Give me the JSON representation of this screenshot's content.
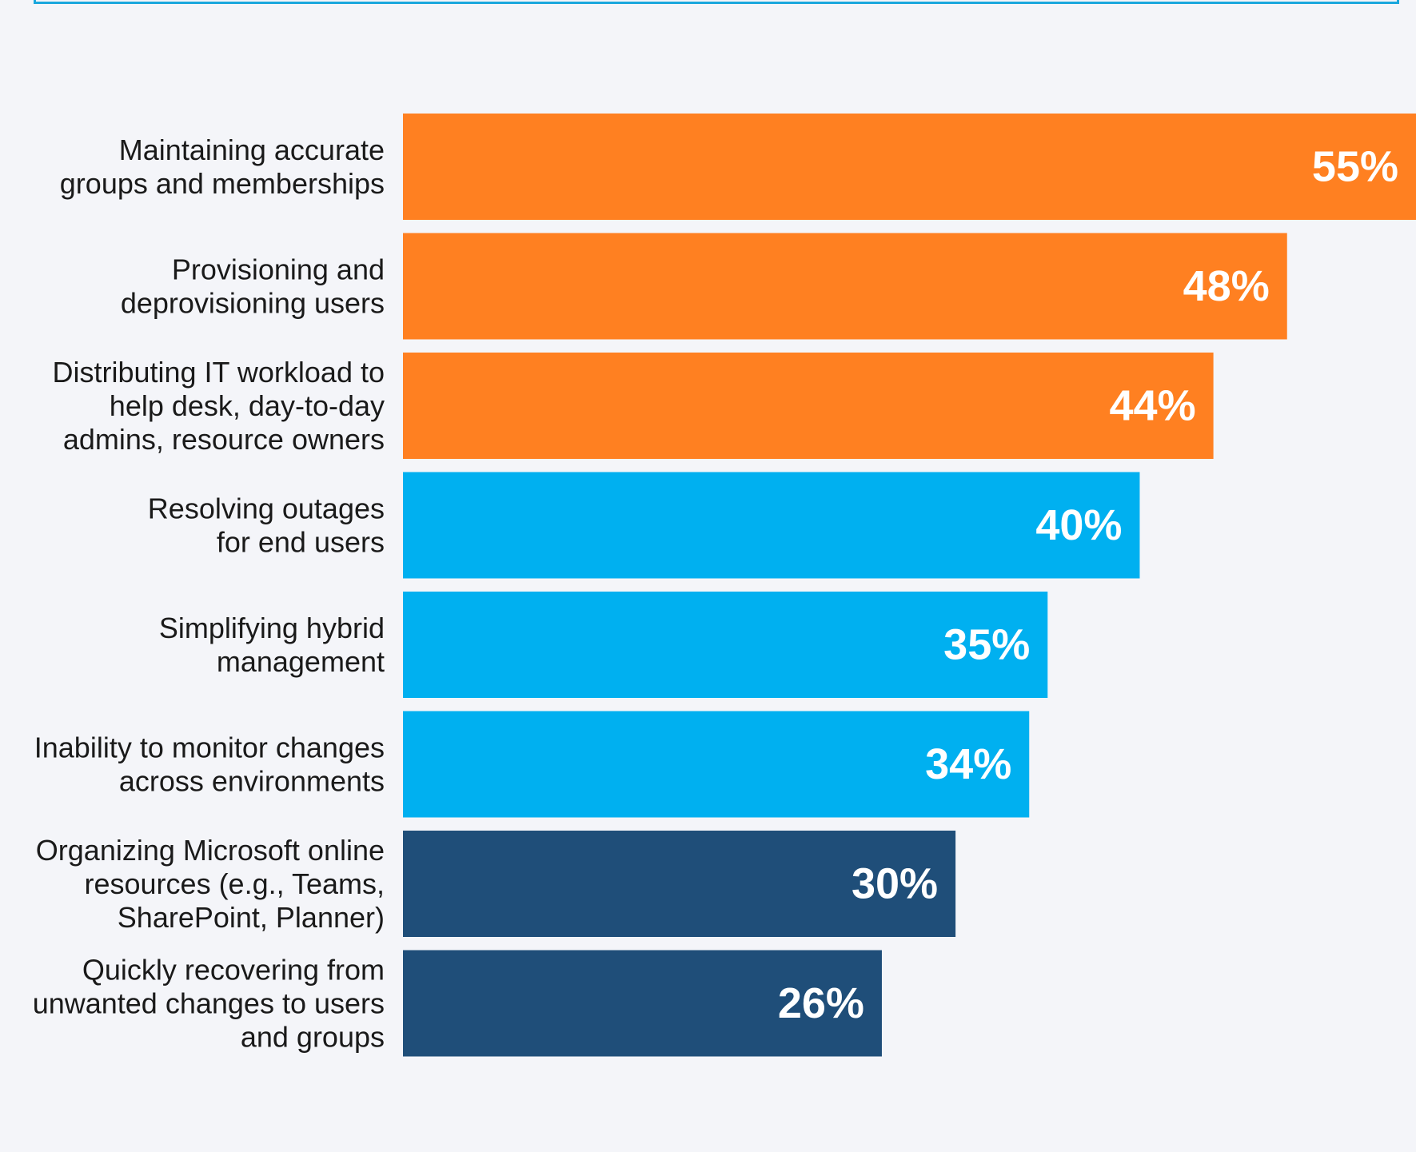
{
  "chart_data": {
    "type": "bar",
    "orientation": "horizontal",
    "categories": [
      [
        "Maintaining accurate",
        "groups and memberships"
      ],
      [
        "Provisioning and",
        "deprovisioning users"
      ],
      [
        "Distributing IT workload to",
        "help desk, day-to-day",
        "admins, resource owners"
      ],
      [
        "Resolving outages",
        "for end users"
      ],
      [
        "Simplifying hybrid",
        "management"
      ],
      [
        "Inability to monitor changes",
        "across environments"
      ],
      [
        "Organizing Microsoft online",
        "resources (e.g., Teams,",
        "SharePoint, Planner)"
      ],
      [
        "Quickly recovering from",
        "unwanted changes to users",
        "and groups"
      ]
    ],
    "values": [
      55,
      48,
      44,
      40,
      35,
      34,
      30,
      26
    ],
    "value_labels": [
      "55%",
      "48%",
      "44%",
      "40%",
      "35%",
      "34%",
      "30%",
      "26%"
    ],
    "colors": [
      "#ff8021",
      "#ff8021",
      "#ff8021",
      "#00b0f0",
      "#00b0f0",
      "#00b0f0",
      "#1f4e79",
      "#1f4e79"
    ],
    "unit": "%",
    "xlim": [
      0,
      55
    ]
  }
}
